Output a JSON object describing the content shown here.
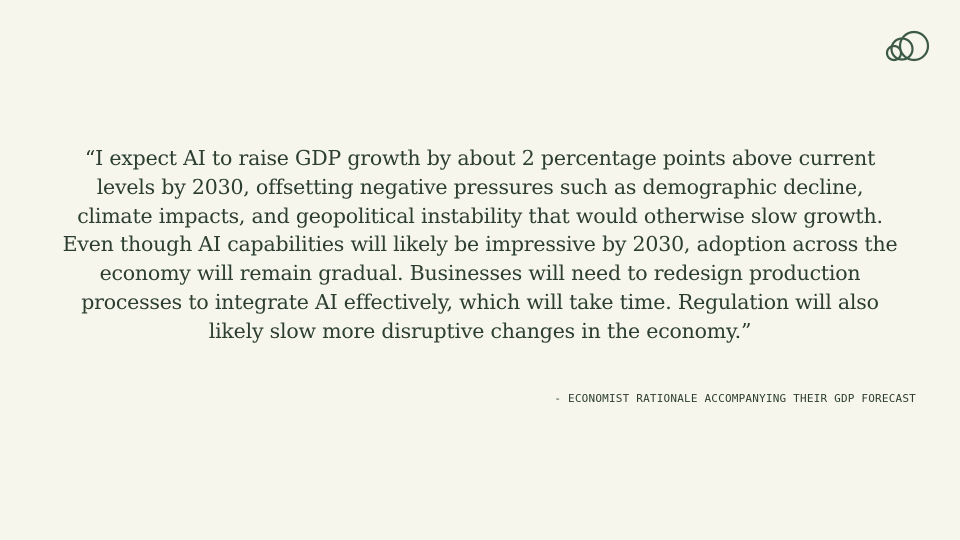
{
  "logo": {
    "icon": "overlapping-circles-logo-icon",
    "color": "#3d5a44"
  },
  "quote": {
    "lines": [
      "“I expect AI to raise GDP growth by about 2 percentage points above current",
      "levels by 2030, offsetting negative pressures such as demographic decline,",
      "climate impacts, and geopolitical instability that would otherwise slow growth.",
      "Even though AI capabilities will likely be impressive by 2030, adoption across the",
      "economy will remain gradual. Businesses will need to redesign production",
      "processes to integrate AI effectively, which will take time. Regulation will also",
      "likely slow more disruptive changes in the economy.”"
    ]
  },
  "attribution": {
    "text": "- ECONOMIST RATIONALE ACCOMPANYING THEIR GDP FORECAST"
  },
  "colors": {
    "background": "#f6f6ec",
    "text": "#2c3e2f"
  }
}
